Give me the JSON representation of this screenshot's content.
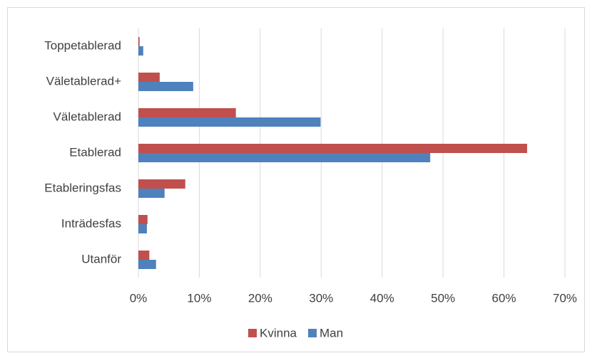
{
  "chart_data": {
    "type": "hbar",
    "categories": [
      "Toppetablerad",
      "Väletablerad+",
      "Väletablerad",
      "Etablerad",
      "Etableringsfas",
      "Inträdesfas",
      "Utanför"
    ],
    "series": [
      {
        "name": "Kvinna",
        "color": "#c0504d",
        "values": [
          0.2,
          3.5,
          16.0,
          63.8,
          7.7,
          1.5,
          1.8
        ]
      },
      {
        "name": "Man",
        "color": "#4f81bd",
        "values": [
          0.8,
          9.0,
          29.9,
          47.9,
          4.3,
          1.4,
          2.9
        ]
      }
    ],
    "xlim": [
      0,
      70
    ],
    "xticks": [
      {
        "value": 0,
        "label": "0%"
      },
      {
        "value": 10,
        "label": "10%"
      },
      {
        "value": 20,
        "label": "20%"
      },
      {
        "value": 30,
        "label": "30%"
      },
      {
        "value": 40,
        "label": "40%"
      },
      {
        "value": 50,
        "label": "50%"
      },
      {
        "value": 60,
        "label": "60%"
      },
      {
        "value": 70,
        "label": "70%"
      }
    ],
    "grid": true,
    "legend": "bottom"
  }
}
